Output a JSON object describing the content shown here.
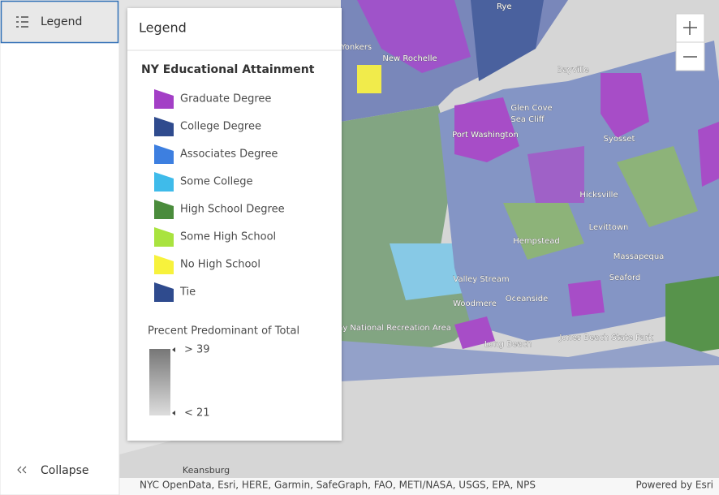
{
  "sidebar": {
    "button": "Legend",
    "collapse": "Collapse"
  },
  "legend": {
    "title": "Legend",
    "layer_title": "NY Educational Attainment",
    "items": [
      {
        "label": "Graduate Degree",
        "color": "#a33fc6"
      },
      {
        "label": "College Degree",
        "color": "#2f4b8e"
      },
      {
        "label": "Associates Degree",
        "color": "#3d7fe0"
      },
      {
        "label": "Some College",
        "color": "#3fbbea"
      },
      {
        "label": "High School Degree",
        "color": "#4a8c3c"
      },
      {
        "label": "Some High School",
        "color": "#a9e33f"
      },
      {
        "label": "No High School",
        "color": "#f7f23c"
      },
      {
        "label": "Tie",
        "color": "#2f4b8e"
      }
    ],
    "opacity_title": "Precent Predominant of Total",
    "opacity_high": "> 39",
    "opacity_low": "< 21"
  },
  "map": {
    "labels": [
      "Rye",
      "Yonkers",
      "New Rochelle",
      "Bayville",
      "Glen Cove",
      "Sea Cliff",
      "Port Washington",
      "Syosset",
      "Hicksville",
      "Levittown",
      "Hempstead",
      "Massapequa",
      "Seaford",
      "Valley Stream",
      "Woodmere",
      "Oceanside",
      "Long Beach",
      "Jones Beach State Park",
      "Keansburg",
      "Gateway National Recreation Area"
    ],
    "attribution": "NYC OpenData, Esri, HERE, Garmin, SafeGraph, FAO, METI/NASA, USGS, EPA, NPS",
    "powered_by": "Powered by Esri"
  }
}
